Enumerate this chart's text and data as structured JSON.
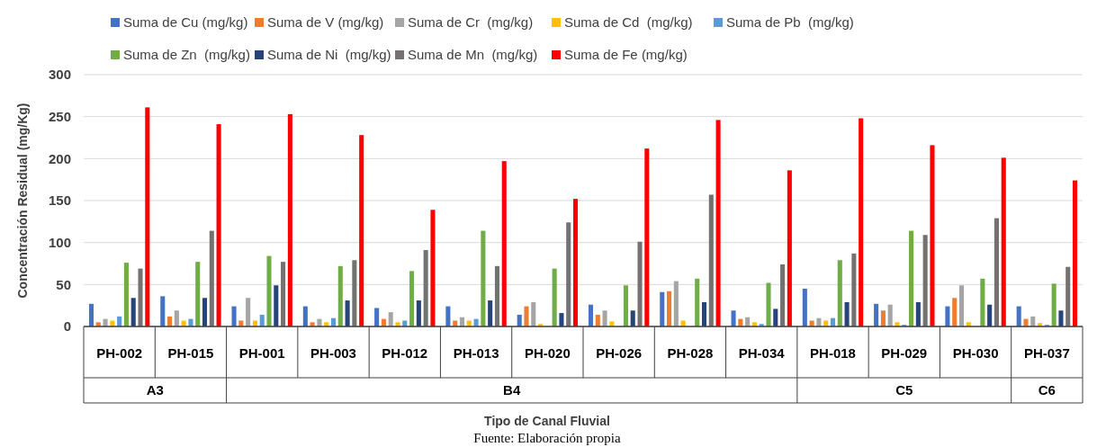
{
  "chart_data": {
    "type": "bar",
    "ylabel": "Concentración Residual (mg/Kg)",
    "xlabel": "Tipo de Canal Fluvial",
    "categories": [
      "PH-002",
      "PH-015",
      "PH-001",
      "PH-003",
      "PH-012",
      "PH-013",
      "PH-020",
      "PH-026",
      "PH-028",
      "PH-034",
      "PH-018",
      "PH-029",
      "PH-030",
      "PH-037"
    ],
    "series": [
      {
        "name": "Suma de Cu (mg/kg)",
        "color": "#4472c4",
        "values": [
          27,
          36,
          24,
          24,
          22,
          24,
          14,
          26,
          41,
          19,
          45,
          27,
          24,
          24
        ]
      },
      {
        "name": "Suma de V (mg/kg)",
        "color": "#ed7d31",
        "values": [
          5,
          12,
          7,
          5,
          9,
          7,
          24,
          14,
          42,
          9,
          7,
          19,
          34,
          9
        ]
      },
      {
        "name": "Suma de Cr  (mg/kg)",
        "color": "#a5a5a5",
        "values": [
          9,
          19,
          34,
          9,
          17,
          11,
          29,
          19,
          54,
          11,
          10,
          26,
          49,
          12
        ]
      },
      {
        "name": "Suma de Cd  (mg/kg)",
        "color": "#ffc000",
        "values": [
          7,
          7,
          7,
          5,
          5,
          7,
          3,
          6,
          7,
          5,
          7,
          5,
          5,
          4
        ]
      },
      {
        "name": "Suma de Pb  (mg/kg)",
        "color": "#5b9bd5",
        "values": [
          12,
          9,
          14,
          10,
          7,
          9,
          0,
          0,
          0,
          3,
          10,
          2,
          0,
          2
        ]
      },
      {
        "name": "Suma de Zn  (mg/kg)",
        "color": "#70ad47",
        "values": [
          76,
          77,
          84,
          72,
          66,
          114,
          69,
          49,
          57,
          52,
          79,
          114,
          57,
          51
        ]
      },
      {
        "name": "Suma de Ni  (mg/kg)",
        "color": "#264478",
        "values": [
          34,
          34,
          49,
          31,
          31,
          31,
          16,
          19,
          29,
          21,
          29,
          29,
          26,
          19
        ]
      },
      {
        "name": "Suma de Mn  (mg/kg)",
        "color": "#767171",
        "values": [
          69,
          114,
          77,
          79,
          91,
          72,
          124,
          101,
          157,
          74,
          87,
          109,
          129,
          71
        ]
      },
      {
        "name": "Suma de Fe (mg/kg)",
        "color": "#ff0000",
        "values": [
          261,
          241,
          253,
          228,
          139,
          197,
          152,
          212,
          246,
          186,
          248,
          216,
          201,
          174
        ]
      }
    ],
    "ylim": [
      0,
      300
    ],
    "yticks": [
      0,
      50,
      100,
      150,
      200,
      250,
      300
    ],
    "grid": "y",
    "legend": "top",
    "annotations": [
      "A3",
      "B4",
      "C5",
      "C6",
      "Fuente: Elaboración propia"
    ]
  }
}
